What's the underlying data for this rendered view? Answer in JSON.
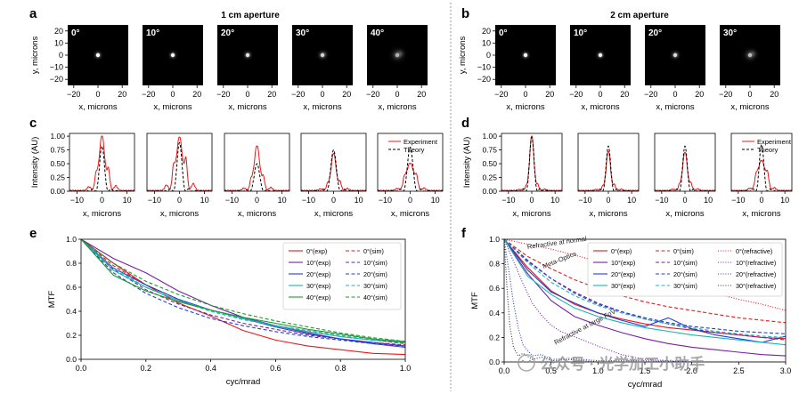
{
  "watermark": "公众号 · 光学加工小助手",
  "chart_data": [
    {
      "panel": "a",
      "type": "heatmap",
      "title": "1 cm aperture",
      "xlabel": "x, microns",
      "ylabel": "y, microns",
      "xticks": [
        "−20",
        "0",
        "20"
      ],
      "yticks": [
        "20",
        "10",
        "0",
        "−10",
        "−20"
      ],
      "xlim": [
        -25,
        25
      ],
      "ylim": [
        -25,
        25
      ],
      "frames": [
        {
          "label": "0°",
          "spot": [
            0,
            0
          ],
          "strength": 1.0,
          "spread": 0.0
        },
        {
          "label": "10°",
          "spot": [
            0,
            0
          ],
          "strength": 0.92,
          "spread": 0.15
        },
        {
          "label": "20°",
          "spot": [
            0,
            0
          ],
          "strength": 0.8,
          "spread": 0.35
        },
        {
          "label": "30°",
          "spot": [
            0,
            0
          ],
          "strength": 0.7,
          "spread": 0.55
        },
        {
          "label": "40°",
          "spot": [
            0,
            0
          ],
          "strength": 0.5,
          "spread": 0.85
        }
      ]
    },
    {
      "panel": "b",
      "type": "heatmap",
      "title": "2 cm aperture",
      "xlabel": "x, microns",
      "ylabel": "y, microns",
      "xticks": [
        "−20",
        "0",
        "20"
      ],
      "yticks": [
        "20",
        "10",
        "0",
        "−10",
        "−20"
      ],
      "xlim": [
        -25,
        25
      ],
      "ylim": [
        -25,
        25
      ],
      "frames": [
        {
          "label": "0°",
          "spot": [
            0,
            0
          ],
          "strength": 1.0,
          "spread": 0.0
        },
        {
          "label": "10°",
          "spot": [
            0,
            0
          ],
          "strength": 0.9,
          "spread": 0.2
        },
        {
          "label": "20°",
          "spot": [
            0,
            0
          ],
          "strength": 0.75,
          "spread": 0.45
        },
        {
          "label": "30°",
          "spot": [
            0,
            0
          ],
          "strength": 0.55,
          "spread": 0.8
        }
      ]
    },
    {
      "panel": "c",
      "type": "line",
      "xlabel": "x, microns",
      "ylabel": "Intensity (AU)",
      "xlim": [
        -13,
        13
      ],
      "ylim": [
        0,
        1.05
      ],
      "xticks": [
        "−10",
        "0",
        "10"
      ],
      "yticks": [
        "0.00",
        "0.25",
        "0.50",
        "0.75",
        "1.00"
      ],
      "legend": [
        "Experiment",
        "Theory"
      ],
      "subplots": [
        {
          "exp_peak": 1.0,
          "exp_width": 1.1,
          "exp_side": 0.35,
          "th_peak": 0.82,
          "th_width": 0.8
        },
        {
          "exp_peak": 0.98,
          "exp_width": 1.2,
          "exp_side": 0.5,
          "th_peak": 0.88,
          "th_width": 0.8
        },
        {
          "exp_peak": 0.82,
          "exp_width": 1.1,
          "exp_side": 0.22,
          "th_peak": 0.5,
          "th_width": 0.9
        },
        {
          "exp_peak": 0.68,
          "exp_width": 1.0,
          "exp_side": 0.15,
          "th_peak": 0.75,
          "th_width": 0.9
        },
        {
          "exp_peak": 0.5,
          "exp_width": 1.5,
          "exp_side": 0.18,
          "th_peak": 0.8,
          "th_width": 0.9
        }
      ]
    },
    {
      "panel": "d",
      "type": "line",
      "xlabel": "x, microns",
      "ylabel": "Intensity (AU)",
      "xlim": [
        -13,
        13
      ],
      "ylim": [
        0,
        1.05
      ],
      "xticks": [
        "−10",
        "0",
        "10"
      ],
      "yticks": [
        "0.00",
        "0.25",
        "0.50",
        "0.75",
        "1.00"
      ],
      "legend": [
        "Experiment",
        "Theory"
      ],
      "subplots": [
        {
          "exp_peak": 1.0,
          "exp_width": 0.9,
          "exp_side": 0.1,
          "th_peak": 0.98,
          "th_width": 0.8
        },
        {
          "exp_peak": 0.72,
          "exp_width": 0.9,
          "exp_side": 0.1,
          "th_peak": 0.82,
          "th_width": 0.8
        },
        {
          "exp_peak": 0.7,
          "exp_width": 1.0,
          "exp_side": 0.12,
          "th_peak": 0.82,
          "th_width": 0.8
        },
        {
          "exp_peak": 0.55,
          "exp_width": 1.6,
          "exp_side": 0.2,
          "th_peak": 0.85,
          "th_width": 0.8
        }
      ]
    },
    {
      "panel": "e",
      "type": "line",
      "xlabel": "cyc/mrad",
      "ylabel": "MTF",
      "xlim": [
        0,
        1.0
      ],
      "ylim": [
        0,
        1.0
      ],
      "xticks": [
        "0.0",
        "0.2",
        "0.4",
        "0.6",
        "0.8",
        "1.0"
      ],
      "yticks": [
        "0.0",
        "0.2",
        "0.4",
        "0.6",
        "0.8",
        "1.0"
      ],
      "series": [
        {
          "name": "0°(exp)",
          "color": "#e8191b",
          "dash": "solid",
          "x": [
            0,
            0.1,
            0.2,
            0.3,
            0.4,
            0.5,
            0.6,
            0.7,
            0.8,
            0.9,
            1.0
          ],
          "y": [
            1.0,
            0.8,
            0.62,
            0.47,
            0.36,
            0.24,
            0.16,
            0.11,
            0.08,
            0.05,
            0.04
          ]
        },
        {
          "name": "0°(sim)",
          "color": "#e8191b",
          "dash": "dashed",
          "x": [
            0,
            0.1,
            0.2,
            0.3,
            0.4,
            0.5,
            0.6,
            0.7,
            0.8,
            0.9,
            1.0
          ],
          "y": [
            1.0,
            0.78,
            0.62,
            0.5,
            0.41,
            0.34,
            0.28,
            0.23,
            0.19,
            0.16,
            0.13
          ]
        },
        {
          "name": "10°(exp)",
          "color": "#7a1fa0",
          "dash": "solid",
          "x": [
            0,
            0.1,
            0.2,
            0.3,
            0.4,
            0.5,
            0.6,
            0.7,
            0.8,
            0.9,
            1.0
          ],
          "y": [
            1.0,
            0.84,
            0.72,
            0.57,
            0.45,
            0.35,
            0.28,
            0.22,
            0.17,
            0.13,
            0.1
          ]
        },
        {
          "name": "10°(sim)",
          "color": "#7a1fa0",
          "dash": "dashed",
          "x": [
            0,
            0.1,
            0.2,
            0.3,
            0.4,
            0.5,
            0.6,
            0.7,
            0.8,
            0.9,
            1.0
          ],
          "y": [
            1.0,
            0.75,
            0.58,
            0.46,
            0.37,
            0.3,
            0.25,
            0.2,
            0.17,
            0.14,
            0.12
          ]
        },
        {
          "name": "20°(exp)",
          "color": "#1f3fd0",
          "dash": "solid",
          "x": [
            0,
            0.1,
            0.2,
            0.3,
            0.4,
            0.5,
            0.6,
            0.7,
            0.8,
            0.9,
            1.0
          ],
          "y": [
            1.0,
            0.76,
            0.62,
            0.5,
            0.41,
            0.34,
            0.27,
            0.21,
            0.17,
            0.14,
            0.11
          ]
        },
        {
          "name": "20°(sim)",
          "color": "#1f3fd0",
          "dash": "dashed",
          "x": [
            0,
            0.1,
            0.2,
            0.3,
            0.4,
            0.5,
            0.6,
            0.7,
            0.8,
            0.9,
            1.0
          ],
          "y": [
            1.0,
            0.72,
            0.55,
            0.43,
            0.34,
            0.28,
            0.23,
            0.19,
            0.16,
            0.13,
            0.11
          ]
        },
        {
          "name": "30°(exp)",
          "color": "#19b5b5",
          "dash": "solid",
          "x": [
            0,
            0.1,
            0.2,
            0.3,
            0.4,
            0.5,
            0.6,
            0.7,
            0.8,
            0.9,
            1.0
          ],
          "y": [
            1.0,
            0.74,
            0.6,
            0.49,
            0.41,
            0.34,
            0.28,
            0.23,
            0.19,
            0.16,
            0.14
          ]
        },
        {
          "name": "30°(sim)",
          "color": "#19b5b5",
          "dash": "dashed",
          "x": [
            0,
            0.1,
            0.2,
            0.3,
            0.4,
            0.5,
            0.6,
            0.7,
            0.8,
            0.9,
            1.0
          ],
          "y": [
            1.0,
            0.76,
            0.6,
            0.49,
            0.4,
            0.33,
            0.28,
            0.24,
            0.2,
            0.17,
            0.15
          ]
        },
        {
          "name": "40°(exp)",
          "color": "#1e9a2a",
          "dash": "solid",
          "x": [
            0,
            0.1,
            0.2,
            0.3,
            0.4,
            0.5,
            0.6,
            0.7,
            0.8,
            0.9,
            1.0
          ],
          "y": [
            1.0,
            0.7,
            0.57,
            0.48,
            0.41,
            0.35,
            0.3,
            0.25,
            0.21,
            0.17,
            0.14
          ]
        },
        {
          "name": "40°(sim)",
          "color": "#1e9a2a",
          "dash": "dashed",
          "x": [
            0,
            0.1,
            0.2,
            0.3,
            0.4,
            0.5,
            0.6,
            0.7,
            0.8,
            0.9,
            1.0
          ],
          "y": [
            1.0,
            0.8,
            0.65,
            0.54,
            0.45,
            0.38,
            0.32,
            0.27,
            0.22,
            0.18,
            0.15
          ]
        }
      ]
    },
    {
      "panel": "f",
      "type": "line",
      "xlabel": "cyc/mrad",
      "ylabel": "MTF",
      "xlim": [
        0,
        3.0
      ],
      "ylim": [
        0,
        1.0
      ],
      "xticks": [
        "0.0",
        "0.5",
        "1.0",
        "1.5",
        "2.0",
        "2.5",
        "3.0"
      ],
      "yticks": [
        "0.0",
        "0.2",
        "0.4",
        "0.6",
        "0.8",
        "1.0"
      ],
      "annotations": [
        {
          "text": "Refractive at normal",
          "x": 0.25,
          "y": 0.92,
          "angle": -8
        },
        {
          "text": "Meta-Optics",
          "x": 0.42,
          "y": 0.76,
          "angle": -22
        },
        {
          "text": "Refractive at large FoV",
          "x": 0.55,
          "y": 0.14,
          "angle": -28
        }
      ],
      "series": [
        {
          "name": "0°(exp)",
          "color": "#e8191b",
          "dash": "solid",
          "x": [
            0,
            0.25,
            0.5,
            0.75,
            1.0,
            1.25,
            1.5,
            1.75,
            2.0,
            2.25,
            2.5,
            2.75,
            3.0
          ],
          "y": [
            1.0,
            0.77,
            0.58,
            0.47,
            0.4,
            0.35,
            0.31,
            0.28,
            0.26,
            0.24,
            0.22,
            0.2,
            0.19
          ]
        },
        {
          "name": "0°(sim)",
          "color": "#e8191b",
          "dash": "dashed",
          "x": [
            0,
            0.25,
            0.5,
            0.75,
            1.0,
            1.25,
            1.5,
            1.75,
            2.0,
            2.25,
            2.5,
            2.75,
            3.0
          ],
          "y": [
            1.0,
            0.86,
            0.76,
            0.67,
            0.6,
            0.54,
            0.49,
            0.45,
            0.42,
            0.39,
            0.36,
            0.34,
            0.32
          ]
        },
        {
          "name": "0°(refractive)",
          "color": "#e8191b",
          "dash": "dotted",
          "x": [
            0,
            0.25,
            0.5,
            0.75,
            1.0,
            1.25,
            1.5,
            1.75,
            2.0,
            2.25,
            2.5,
            2.75,
            3.0
          ],
          "y": [
            1.0,
            0.96,
            0.92,
            0.87,
            0.82,
            0.77,
            0.72,
            0.67,
            0.61,
            0.56,
            0.51,
            0.47,
            0.42
          ]
        },
        {
          "name": "10°(exp)",
          "color": "#7a1fa0",
          "dash": "solid",
          "x": [
            0,
            0.25,
            0.5,
            0.75,
            1.0,
            1.25,
            1.5,
            1.75,
            2.0,
            2.25,
            2.5,
            2.75,
            3.0
          ],
          "y": [
            1.0,
            0.72,
            0.5,
            0.37,
            0.3,
            0.24,
            0.19,
            0.15,
            0.12,
            0.1,
            0.08,
            0.06,
            0.05
          ]
        },
        {
          "name": "10°(sim)",
          "color": "#7a1fa0",
          "dash": "dashed",
          "x": [
            0,
            0.25,
            0.5,
            0.75,
            1.0,
            1.25,
            1.5,
            1.75,
            2.0,
            2.25,
            2.5,
            2.75,
            3.0
          ],
          "y": [
            1.0,
            0.82,
            0.68,
            0.57,
            0.48,
            0.41,
            0.35,
            0.31,
            0.27,
            0.24,
            0.22,
            0.2,
            0.18
          ]
        },
        {
          "name": "10°(refractive)",
          "color": "#7a1fa0",
          "dash": "dotted",
          "x": [
            0,
            0.1,
            0.2,
            0.3,
            0.4,
            0.5,
            0.6,
            0.7,
            0.8,
            1.0,
            1.25,
            1.5,
            2.0
          ],
          "y": [
            1.0,
            0.82,
            0.64,
            0.48,
            0.38,
            0.3,
            0.25,
            0.22,
            0.19,
            0.13,
            0.06,
            0.02,
            0.0
          ]
        },
        {
          "name": "20°(exp)",
          "color": "#1f3fd0",
          "dash": "solid",
          "x": [
            0,
            0.25,
            0.5,
            0.75,
            1.0,
            1.25,
            1.5,
            1.75,
            2.0,
            2.25,
            2.5,
            2.75,
            3.0
          ],
          "y": [
            1.0,
            0.75,
            0.57,
            0.48,
            0.4,
            0.34,
            0.29,
            0.36,
            0.27,
            0.22,
            0.19,
            0.16,
            0.21
          ]
        },
        {
          "name": "20°(sim)",
          "color": "#1f3fd0",
          "dash": "dashed",
          "x": [
            0,
            0.25,
            0.5,
            0.75,
            1.0,
            1.25,
            1.5,
            1.75,
            2.0,
            2.25,
            2.5,
            2.75,
            3.0
          ],
          "y": [
            1.0,
            0.83,
            0.68,
            0.56,
            0.47,
            0.41,
            0.36,
            0.32,
            0.29,
            0.27,
            0.25,
            0.24,
            0.23
          ]
        },
        {
          "name": "20°(refractive)",
          "color": "#1f3fd0",
          "dash": "dotted",
          "x": [
            0,
            0.05,
            0.1,
            0.15,
            0.2,
            0.3,
            0.4,
            0.5,
            0.7,
            1.0,
            1.5,
            2.0,
            3.0
          ],
          "y": [
            1.0,
            0.74,
            0.48,
            0.28,
            0.14,
            0.05,
            0.06,
            0.02,
            0.03,
            0.01,
            0.01,
            0.0,
            0.0
          ]
        },
        {
          "name": "30°(exp)",
          "color": "#19b5b5",
          "dash": "solid",
          "x": [
            0,
            0.25,
            0.5,
            0.75,
            1.0,
            1.25,
            1.5,
            1.75,
            2.0,
            2.25,
            2.5,
            2.75,
            3.0
          ],
          "y": [
            1.0,
            0.7,
            0.55,
            0.44,
            0.37,
            0.32,
            0.28,
            0.25,
            0.22,
            0.2,
            0.18,
            0.16,
            0.14
          ]
        },
        {
          "name": "30°(sim)",
          "color": "#19b5b5",
          "dash": "dashed",
          "x": [
            0,
            0.25,
            0.5,
            0.75,
            1.0,
            1.25,
            1.5,
            1.75,
            2.0,
            2.25,
            2.5,
            2.75,
            3.0
          ],
          "y": [
            1.0,
            0.81,
            0.65,
            0.54,
            0.46,
            0.4,
            0.35,
            0.31,
            0.28,
            0.25,
            0.23,
            0.21,
            0.2
          ]
        },
        {
          "name": "30°(refractive)",
          "color": "#333333",
          "dash": "dotted",
          "x": [
            0,
            0.03,
            0.06,
            0.1,
            0.15,
            0.2,
            0.3,
            0.4,
            0.5,
            0.7,
            1.0,
            2.0,
            3.0
          ],
          "y": [
            1.0,
            0.6,
            0.3,
            0.12,
            0.05,
            0.07,
            0.02,
            0.04,
            0.01,
            0.02,
            0.0,
            0.0,
            0.0
          ]
        }
      ]
    }
  ]
}
